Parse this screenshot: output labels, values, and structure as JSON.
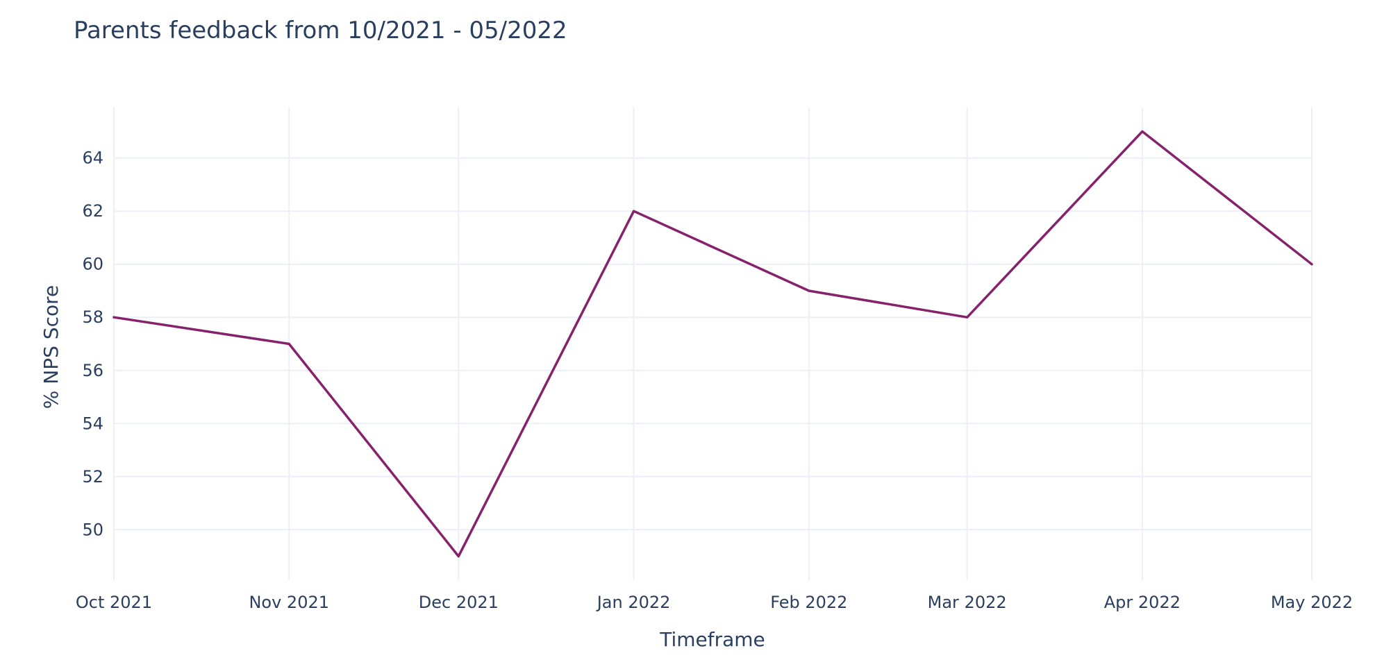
{
  "chart_data": {
    "type": "line",
    "title": "Parents feedback from 10/2021 - 05/2022",
    "xlabel": "Timeframe",
    "ylabel": "% NPS Score",
    "x": [
      "2021-10-01",
      "2021-11-01",
      "2021-12-01",
      "2022-01-01",
      "2022-02-01",
      "2022-03-01",
      "2022-04-01",
      "2022-05-01"
    ],
    "x_tick_labels": [
      "Oct 2021",
      "Nov 2021",
      "Dec 2021",
      "Jan 2022",
      "Feb 2022",
      "Mar 2022",
      "Apr 2022",
      "May 2022"
    ],
    "series": [
      {
        "values": [
          58,
          57,
          49,
          62,
          59,
          58,
          65,
          60
        ],
        "color": "#86216b"
      }
    ],
    "y_ticks": [
      50,
      52,
      54,
      56,
      58,
      60,
      62,
      64
    ],
    "ylim": [
      48.1,
      65.9
    ],
    "xlim": [
      "2021-10-01",
      "2022-05-01"
    ],
    "grid": true,
    "legend": "none"
  }
}
